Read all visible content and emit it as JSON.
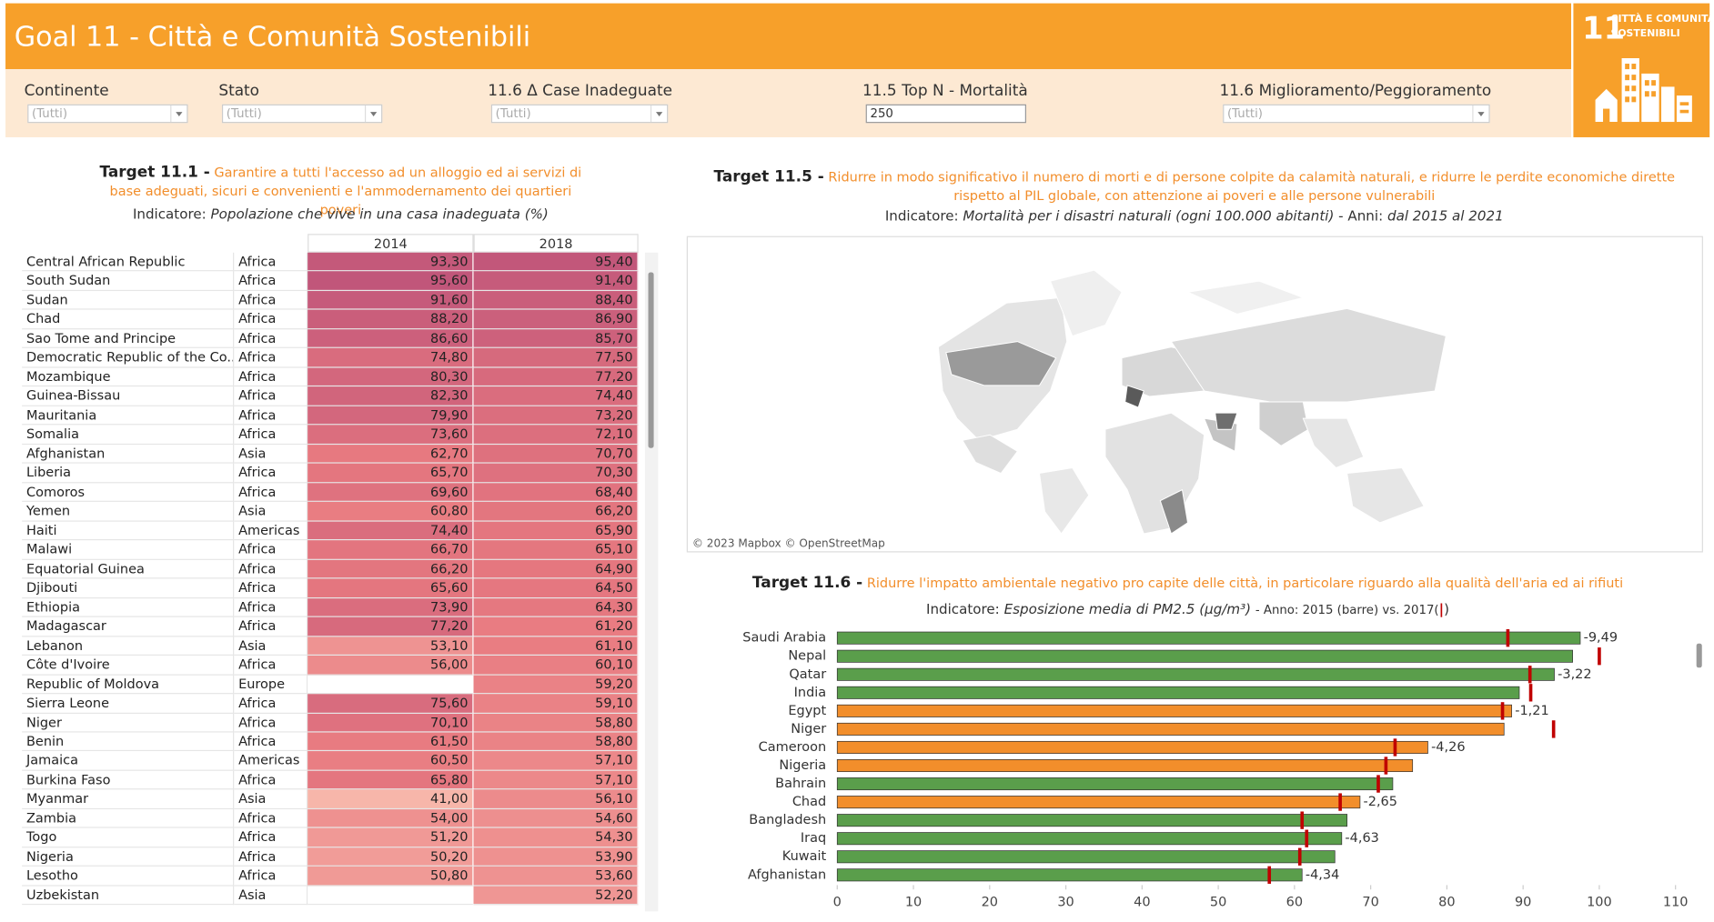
{
  "header": {
    "title": "Goal 11 - Città e Comunità Sostenibili",
    "logo_number": "11",
    "logo_text_1": "CITTÀ E COMUNITÀ",
    "logo_text_2": "SOSTENIBILI"
  },
  "filters": [
    {
      "label": "Continente",
      "value": "(Tutti)"
    },
    {
      "label": "Stato",
      "value": "(Tutti)"
    },
    {
      "label": "11.6 Δ Case Inadeguate",
      "value": "(Tutti)"
    },
    {
      "label": "11.5 Top N - Mortalità",
      "value": "250"
    },
    {
      "label": "11.6 Miglioramento/Peggioramento",
      "value": "(Tutti)"
    }
  ],
  "target_11_1": {
    "title": "Target 11.1 -",
    "description": "Garantire a tutti l'accesso ad un alloggio ed ai servizi di base adeguati, sicuri e convenienti e l'ammodernamento dei quartieri poveri",
    "indicator_label": "Indicatore:",
    "indicator": "Popolazione che vive in  una casa inadeguata (%)",
    "table": {
      "columns": [
        "2014",
        "2018"
      ],
      "rows": [
        [
          "Central African Republic",
          "Africa",
          "93,30",
          "95,40"
        ],
        [
          "South Sudan",
          "Africa",
          "95,60",
          "91,40"
        ],
        [
          "Sudan",
          "Africa",
          "91,60",
          "88,40"
        ],
        [
          "Chad",
          "Africa",
          "88,20",
          "86,90"
        ],
        [
          "Sao Tome and Principe",
          "Africa",
          "86,60",
          "85,70"
        ],
        [
          "Democratic Republic of the Co..",
          "Africa",
          "74,80",
          "77,50"
        ],
        [
          "Mozambique",
          "Africa",
          "80,30",
          "77,20"
        ],
        [
          "Guinea-Bissau",
          "Africa",
          "82,30",
          "74,40"
        ],
        [
          "Mauritania",
          "Africa",
          "79,90",
          "73,20"
        ],
        [
          "Somalia",
          "Africa",
          "73,60",
          "72,10"
        ],
        [
          "Afghanistan",
          "Asia",
          "62,70",
          "70,70"
        ],
        [
          "Liberia",
          "Africa",
          "65,70",
          "70,30"
        ],
        [
          "Comoros",
          "Africa",
          "69,60",
          "68,40"
        ],
        [
          "Yemen",
          "Asia",
          "60,80",
          "66,20"
        ],
        [
          "Haiti",
          "Americas",
          "74,40",
          "65,90"
        ],
        [
          "Malawi",
          "Africa",
          "66,70",
          "65,10"
        ],
        [
          "Equatorial Guinea",
          "Africa",
          "66,20",
          "64,90"
        ],
        [
          "Djibouti",
          "Africa",
          "65,60",
          "64,50"
        ],
        [
          "Ethiopia",
          "Africa",
          "73,90",
          "64,30"
        ],
        [
          "Madagascar",
          "Africa",
          "77,20",
          "61,20"
        ],
        [
          "Lebanon",
          "Asia",
          "53,10",
          "61,10"
        ],
        [
          "Côte d'Ivoire",
          "Africa",
          "56,00",
          "60,10"
        ],
        [
          "Republic of Moldova",
          "Europe",
          null,
          "59,20"
        ],
        [
          "Sierra Leone",
          "Africa",
          "75,60",
          "59,10"
        ],
        [
          "Niger",
          "Africa",
          "70,10",
          "58,80"
        ],
        [
          "Benin",
          "Africa",
          "61,50",
          "58,80"
        ],
        [
          "Jamaica",
          "Americas",
          "60,50",
          "57,10"
        ],
        [
          "Burkina Faso",
          "Africa",
          "65,80",
          "57,10"
        ],
        [
          "Myanmar",
          "Asia",
          "41,00",
          "56,10"
        ],
        [
          "Zambia",
          "Africa",
          "54,00",
          "54,60"
        ],
        [
          "Togo",
          "Africa",
          "51,20",
          "54,30"
        ],
        [
          "Nigeria",
          "Africa",
          "50,20",
          "53,90"
        ],
        [
          "Lesotho",
          "Africa",
          "50,80",
          "53,60"
        ],
        [
          "Uzbekistan",
          "Asia",
          null,
          "52,20"
        ]
      ]
    }
  },
  "target_11_5": {
    "title": "Target 11.5 -",
    "description": "Ridurre in modo significativo il numero di morti e di persone colpite da calamità naturali, e ridurre le perdite economiche dirette rispetto al PIL globale, con attenzione ai poveri e alle persone vulnerabili",
    "indicator_label": "Indicatore:",
    "indicator": "Mortalità per i disastri naturali (ogni 100.000 abitanti)",
    "years_label": "- Anni:",
    "years": "dal 2015 al 2021",
    "map_attribution": "© 2023 Mapbox © OpenStreetMap"
  },
  "target_11_6": {
    "title": "Target 11.6 -",
    "description": "Ridurre l'impatto ambientale negativo pro capite delle città, in particolare riguardo alla qualità dell'aria ed ai rifiuti",
    "indicator_label": "Indicatore:",
    "indicator": "Esposizione media di PM2.5 (µg/m³)",
    "note": "- Anno: 2015 (barre)  vs. 2017(",
    "note_marker": "|",
    "note_end": ")"
  },
  "chart_data": {
    "type": "bar",
    "orientation": "horizontal",
    "categories": [
      "Saudi Arabia",
      "Nepal",
      "Qatar",
      "India",
      "Egypt",
      "Niger",
      "Cameroon",
      "Nigeria",
      "Bahrain",
      "Chad",
      "Bangladesh",
      "Iraq",
      "Kuwait",
      "Afghanistan"
    ],
    "series": [
      {
        "name": "2015",
        "values": [
          97.5,
          96.5,
          94.1,
          89.5,
          88.5,
          87.5,
          77.5,
          75.5,
          72.9,
          68.6,
          66.9,
          66.2,
          65.3,
          61.0
        ],
        "colors": [
          "#5a9e4b",
          "#5a9e4b",
          "#5a9e4b",
          "#5a9e4b",
          "#f28e2b",
          "#f28e2b",
          "#f28e2b",
          "#f28e2b",
          "#5a9e4b",
          "#f28e2b",
          "#5a9e4b",
          "#5a9e4b",
          "#5a9e4b",
          "#5a9e4b"
        ]
      },
      {
        "name": "2017",
        "color": "#c00000",
        "values": [
          88.0,
          100.0,
          90.9,
          91.0,
          87.3,
          94.0,
          73.2,
          72.0,
          71.0,
          66.0,
          61.0,
          61.6,
          60.7,
          56.7
        ]
      },
      {
        "name": "delta",
        "values": [
          -9.49,
          null,
          -3.22,
          null,
          -1.21,
          null,
          -4.26,
          null,
          null,
          -2.65,
          null,
          -4.63,
          null,
          -4.34
        ],
        "value_labels": [
          "-9,49",
          null,
          "-3,22",
          null,
          "-1,21",
          null,
          "-4,26",
          null,
          null,
          "-2,65",
          null,
          "-4,63",
          null,
          "-4,34"
        ]
      }
    ],
    "xlim": [
      0,
      112
    ],
    "xticks": [
      0,
      10,
      20,
      30,
      40,
      50,
      60,
      70,
      80,
      90,
      100,
      110
    ]
  }
}
